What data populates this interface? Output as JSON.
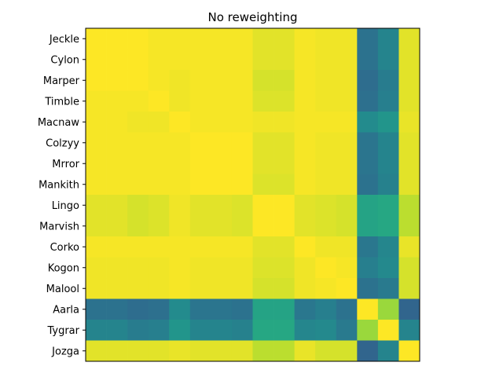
{
  "chart_data": {
    "type": "heatmap",
    "title": "No reweighting",
    "xlabel": "",
    "ylabel": "",
    "rows": [
      "Jeckle",
      "Cylon",
      "Marper",
      "Timble",
      "Macnaw",
      "Colzyy",
      "Mrror",
      "Mankith",
      "Lingo",
      "Marvish",
      "Corko",
      "Kogon",
      "Malool",
      "Aarla",
      "Tygrar",
      "Jozga"
    ],
    "columns": [
      "Jeckle",
      "Cylon",
      "Marper",
      "Timble",
      "Macnaw",
      "Colzyy",
      "Mrror",
      "Mankith",
      "Lingo",
      "Marvish",
      "Corko",
      "Kogon",
      "Malool",
      "Aarla",
      "Tygrar",
      "Jozga"
    ],
    "x_tick_labels_shown": false,
    "grid": false,
    "colormap": "viridis",
    "color_range": [
      0,
      1
    ],
    "values": [
      [
        1.0,
        1.0,
        1.0,
        0.99,
        0.99,
        0.99,
        0.99,
        0.99,
        0.96,
        0.96,
        0.99,
        0.98,
        0.98,
        0.38,
        0.45,
        0.96
      ],
      [
        1.0,
        1.0,
        1.0,
        0.99,
        0.99,
        0.99,
        0.99,
        0.99,
        0.96,
        0.96,
        0.99,
        0.98,
        0.98,
        0.38,
        0.45,
        0.96
      ],
      [
        1.0,
        1.0,
        1.0,
        0.99,
        0.98,
        0.99,
        0.99,
        0.99,
        0.94,
        0.94,
        0.99,
        0.98,
        0.98,
        0.36,
        0.42,
        0.96
      ],
      [
        0.99,
        0.99,
        0.99,
        1.0,
        0.98,
        0.99,
        0.99,
        0.99,
        0.95,
        0.95,
        0.99,
        0.98,
        0.98,
        0.37,
        0.43,
        0.96
      ],
      [
        0.99,
        0.99,
        0.98,
        0.98,
        1.0,
        0.99,
        0.99,
        0.99,
        0.98,
        0.98,
        0.99,
        0.99,
        0.99,
        0.48,
        0.52,
        0.97
      ],
      [
        0.99,
        0.99,
        0.99,
        0.99,
        0.99,
        1.0,
        1.0,
        1.0,
        0.96,
        0.96,
        0.99,
        0.98,
        0.98,
        0.39,
        0.45,
        0.96
      ],
      [
        0.99,
        0.99,
        0.99,
        0.99,
        0.99,
        1.0,
        1.0,
        1.0,
        0.96,
        0.96,
        0.99,
        0.98,
        0.98,
        0.39,
        0.45,
        0.96
      ],
      [
        0.99,
        0.99,
        0.99,
        0.99,
        0.99,
        1.0,
        1.0,
        1.0,
        0.95,
        0.95,
        0.99,
        0.98,
        0.98,
        0.38,
        0.44,
        0.96
      ],
      [
        0.96,
        0.96,
        0.94,
        0.95,
        0.98,
        0.96,
        0.96,
        0.95,
        1.0,
        1.0,
        0.96,
        0.95,
        0.94,
        0.58,
        0.6,
        0.9
      ],
      [
        0.96,
        0.96,
        0.94,
        0.95,
        0.98,
        0.96,
        0.96,
        0.95,
        1.0,
        1.0,
        0.96,
        0.95,
        0.94,
        0.58,
        0.6,
        0.9
      ],
      [
        0.99,
        0.99,
        0.99,
        0.99,
        0.99,
        0.99,
        0.99,
        0.99,
        0.96,
        0.96,
        1.0,
        0.98,
        0.98,
        0.4,
        0.46,
        0.97
      ],
      [
        0.98,
        0.98,
        0.98,
        0.98,
        0.99,
        0.98,
        0.98,
        0.98,
        0.95,
        0.95,
        0.98,
        1.0,
        0.99,
        0.43,
        0.47,
        0.94
      ],
      [
        0.98,
        0.98,
        0.98,
        0.98,
        0.99,
        0.98,
        0.98,
        0.98,
        0.94,
        0.94,
        0.98,
        0.99,
        1.0,
        0.38,
        0.41,
        0.94
      ],
      [
        0.38,
        0.38,
        0.36,
        0.37,
        0.48,
        0.39,
        0.39,
        0.38,
        0.58,
        0.58,
        0.4,
        0.43,
        0.38,
        1.0,
        0.85,
        0.33
      ],
      [
        0.45,
        0.45,
        0.42,
        0.43,
        0.52,
        0.45,
        0.45,
        0.44,
        0.6,
        0.6,
        0.46,
        0.47,
        0.41,
        0.85,
        1.0,
        0.45
      ],
      [
        0.96,
        0.96,
        0.96,
        0.96,
        0.97,
        0.96,
        0.96,
        0.96,
        0.9,
        0.9,
        0.97,
        0.94,
        0.94,
        0.33,
        0.45,
        1.0
      ]
    ]
  }
}
